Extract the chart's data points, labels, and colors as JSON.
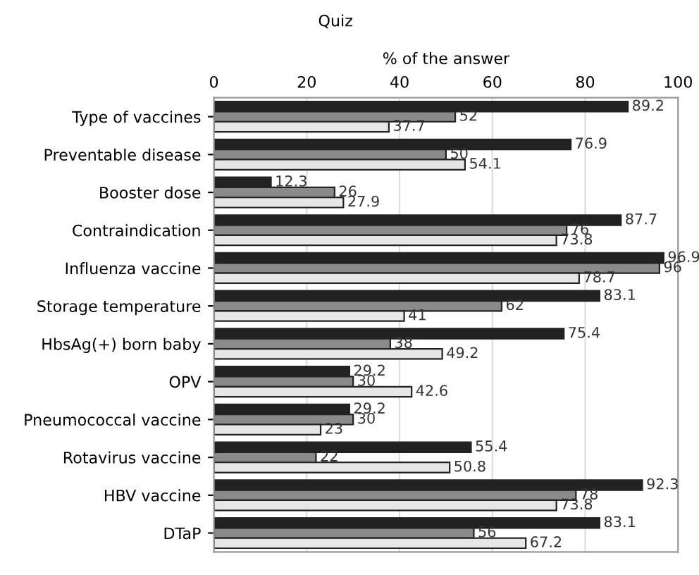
{
  "chart_data": {
    "type": "bar",
    "orientation": "horizontal",
    "ylabel": "Quiz",
    "xlabel": "% of the answer",
    "categories": [
      "Type of vaccines",
      "Preventable disease",
      "Booster dose",
      "Contraindication",
      "Influenza vaccine",
      "Storage temperature",
      "HbsAg(+) born baby",
      "OPV",
      "Pneumococcal vaccine",
      "Rotavirus vaccine",
      "HBV vaccine",
      "DTaP"
    ],
    "series": [
      {
        "color": "#222222",
        "values": [
          89.2,
          76.9,
          12.3,
          87.7,
          96.9,
          83.1,
          75.4,
          29.2,
          29.2,
          55.4,
          92.3,
          83.1
        ]
      },
      {
        "color": "#8a8a8a",
        "values": [
          52,
          50,
          26,
          76,
          96,
          62,
          38,
          30,
          30,
          22,
          78,
          56
        ]
      },
      {
        "color": "#e6e6e6",
        "values": [
          37.7,
          54.1,
          27.9,
          73.8,
          78.7,
          41,
          49.2,
          42.6,
          23,
          50.8,
          73.8,
          67.2
        ]
      }
    ],
    "xlim": [
      0,
      100
    ],
    "xticks": [
      0,
      20,
      40,
      60,
      80,
      100
    ],
    "grid": "x",
    "data_labels": true
  }
}
